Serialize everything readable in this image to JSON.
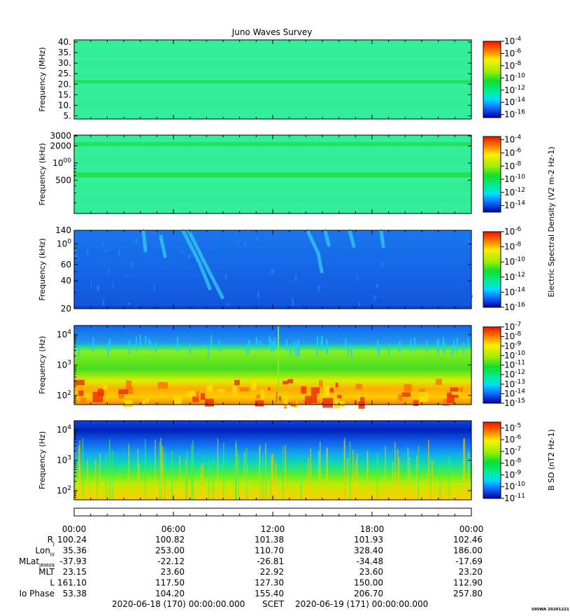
{
  "title": "Juno Waves Survey",
  "chart_data": [
    {
      "type": "heatmap",
      "panel": 1,
      "ylabel": "Frequency (MHz)",
      "yscale": "linear",
      "ylim": [
        3.5,
        41
      ],
      "yticks": [
        "40.",
        "35.",
        "30.",
        "25.",
        "20.",
        "15.",
        "10.",
        "5."
      ],
      "ytick_values": [
        40,
        35,
        30,
        25,
        20,
        15,
        10,
        5
      ],
      "bands": [
        {
          "from": 20.3,
          "to": 22.0,
          "color": "#22dd55"
        },
        {
          "from": 8.5,
          "to": 9.3,
          "color": "#33ee88"
        }
      ],
      "base_color": "#33ee99",
      "colorbar": {
        "min_exp": -16.5,
        "max_exp": -4,
        "labels": [
          "10-4",
          "10-6",
          "10-8",
          "10-10",
          "10-12",
          "10-14",
          "10-16"
        ],
        "label_exps": [
          -4,
          -6,
          -8,
          -10,
          -12,
          -14,
          -16
        ]
      }
    },
    {
      "type": "heatmap",
      "panel": 2,
      "ylabel": "Frequency (kHz)",
      "yscale": "log",
      "ylim": [
        130,
        3100
      ],
      "yticks": [
        "3000",
        "2000",
        "1000",
        "500"
      ],
      "ytick_values": [
        3000,
        2000,
        1000,
        500
      ],
      "bands": [
        {
          "from": 2000,
          "to": 2350,
          "color": "#22dd55"
        },
        {
          "from": 560,
          "to": 680,
          "color": "#22dd44"
        }
      ],
      "base_color": "#33ee99",
      "colorbar": {
        "min_exp": -15,
        "max_exp": -3.5,
        "labels": [
          "10-4",
          "10-6",
          "10-8",
          "10-10",
          "10-12",
          "10-14"
        ],
        "label_exps": [
          -4,
          -6,
          -8,
          -10,
          -12,
          -14
        ]
      }
    },
    {
      "type": "heatmap",
      "panel": 3,
      "ylabel": "Frequency (kHz)",
      "yscale": "log",
      "ylim": [
        20,
        140
      ],
      "yticks": [
        "140",
        "100",
        "60",
        "40",
        "20"
      ],
      "ytick_values": [
        140,
        100,
        60,
        40,
        20
      ],
      "base_color": "#1166ee",
      "colorbar": {
        "min_exp": -16,
        "max_exp": -6,
        "labels": [
          "10-6",
          "10-8",
          "10-10",
          "10-12",
          "10-14",
          "10-16"
        ],
        "label_exps": [
          -6,
          -8,
          -10,
          -12,
          -14,
          -16
        ]
      }
    },
    {
      "type": "heatmap",
      "panel": 4,
      "ylabel": "Frequency (Hz)",
      "yscale": "log",
      "ylim": [
        50,
        20000
      ],
      "yticks": [
        "10^4",
        "10^3",
        "10^2"
      ],
      "ytick_values": [
        10000,
        1000,
        100
      ],
      "colorbar": {
        "min_exp": -15,
        "max_exp": -7,
        "labels": [
          "10-7",
          "10-8",
          "10-9",
          "10-10",
          "10-11",
          "10-12",
          "10-13",
          "10-14",
          "10-15"
        ],
        "label_exps": [
          -7,
          -8,
          -9,
          -10,
          -11,
          -12,
          -13,
          -14,
          -15
        ]
      }
    },
    {
      "type": "heatmap",
      "panel": 5,
      "ylabel": "Frequency (Hz)",
      "yscale": "log",
      "ylim": [
        50,
        20000
      ],
      "yticks": [
        "10^4",
        "10^3",
        "10^2"
      ],
      "ytick_values": [
        10000,
        1000,
        100
      ],
      "colorbar": {
        "min_exp": -11,
        "max_exp": -4.5,
        "labels": [
          "10-5",
          "10-6",
          "10-7",
          "10-8",
          "10-9",
          "10-10",
          "10-11"
        ],
        "label_exps": [
          -5,
          -6,
          -7,
          -8,
          -9,
          -10,
          -11
        ]
      }
    }
  ],
  "colorbar_titles": {
    "electric": "Electric Spectral Density (V^2 m^-2 Hz^-1)",
    "magnetic": "B SD (nT^2 Hz^-1)"
  },
  "time_axis": {
    "labels": [
      "00:00",
      "06:00",
      "12:00",
      "18:00",
      "00:00"
    ],
    "hours": [
      0,
      6,
      12,
      18,
      24
    ]
  },
  "ephemeris": [
    {
      "label": "R",
      "sub": "J",
      "values": [
        "100.24",
        "100.82",
        "101.38",
        "101.93",
        "102.46"
      ]
    },
    {
      "label": "Lon",
      "sub": "III",
      "values": [
        "35.36",
        "253.00",
        "110.70",
        "328.40",
        "186.00"
      ]
    },
    {
      "label": "MLat",
      "sub": "JRM09",
      "values": [
        "-37.93",
        "-22.12",
        "-26.81",
        "-34.48",
        "-17.69"
      ]
    },
    {
      "label": "MLT",
      "sub": "",
      "values": [
        "23.15",
        "23.60",
        "22.92",
        "23.60",
        "23.20"
      ]
    },
    {
      "label": "L",
      "sub": "",
      "values": [
        "161.10",
        "117.50",
        "127.30",
        "150.00",
        "112.90"
      ]
    },
    {
      "label": "Io Phase",
      "sub": "",
      "values": [
        "53.38",
        "104.20",
        "155.40",
        "206.70",
        "257.80"
      ]
    }
  ],
  "footer": {
    "start": "2020-06-18 (170) 00:00:00.000",
    "scet": "SCET",
    "end": "2020-06-19 (171) 00:00:00.000",
    "stamp": "UIOWA 20201221"
  }
}
